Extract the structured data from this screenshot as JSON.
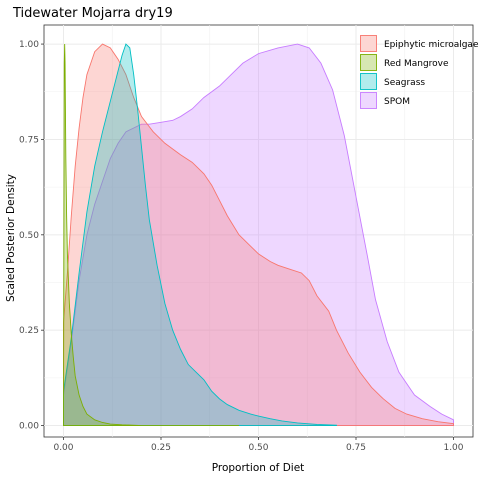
{
  "chart_data": {
    "type": "area",
    "title": "Tidewater Mojarra dry19",
    "xlabel": "Proportion of Diet",
    "ylabel": "Scaled Posterior Density",
    "xlim": [
      -0.05,
      1.05
    ],
    "ylim": [
      -0.03,
      1.05
    ],
    "x_ticks": [
      0.0,
      0.25,
      0.5,
      0.75,
      1.0
    ],
    "x_tick_labels": [
      "0.00",
      "0.25",
      "0.50",
      "0.75",
      "1.00"
    ],
    "y_ticks": [
      0.0,
      0.25,
      0.5,
      0.75,
      1.0
    ],
    "y_tick_labels": [
      "0.00",
      "0.25",
      "0.50",
      "0.75",
      "1.00"
    ],
    "grid": true,
    "legend_position": "top-right",
    "series": [
      {
        "name": "SPOM",
        "fill": "#c77cff",
        "stroke": "#c77cff",
        "points": [
          [
            0.0,
            0.08
          ],
          [
            0.02,
            0.22
          ],
          [
            0.04,
            0.38
          ],
          [
            0.06,
            0.5
          ],
          [
            0.08,
            0.58
          ],
          [
            0.1,
            0.64
          ],
          [
            0.12,
            0.7
          ],
          [
            0.14,
            0.74
          ],
          [
            0.16,
            0.77
          ],
          [
            0.18,
            0.78
          ],
          [
            0.2,
            0.79
          ],
          [
            0.22,
            0.79
          ],
          [
            0.25,
            0.795
          ],
          [
            0.28,
            0.8
          ],
          [
            0.3,
            0.81
          ],
          [
            0.33,
            0.83
          ],
          [
            0.36,
            0.86
          ],
          [
            0.4,
            0.89
          ],
          [
            0.43,
            0.92
          ],
          [
            0.46,
            0.95
          ],
          [
            0.5,
            0.975
          ],
          [
            0.55,
            0.99
          ],
          [
            0.6,
            1.0
          ],
          [
            0.63,
            0.99
          ],
          [
            0.66,
            0.95
          ],
          [
            0.69,
            0.88
          ],
          [
            0.72,
            0.76
          ],
          [
            0.75,
            0.6
          ],
          [
            0.78,
            0.44
          ],
          [
            0.8,
            0.33
          ],
          [
            0.83,
            0.22
          ],
          [
            0.86,
            0.14
          ],
          [
            0.9,
            0.08
          ],
          [
            0.94,
            0.05
          ],
          [
            0.97,
            0.03
          ],
          [
            1.0,
            0.015
          ]
        ]
      },
      {
        "name": "Epiphytic microalgae",
        "fill": "#f8766d",
        "stroke": "#f8766d",
        "points": [
          [
            0.0,
            0.27
          ],
          [
            0.01,
            0.4
          ],
          [
            0.02,
            0.55
          ],
          [
            0.03,
            0.68
          ],
          [
            0.04,
            0.78
          ],
          [
            0.05,
            0.86
          ],
          [
            0.06,
            0.92
          ],
          [
            0.08,
            0.98
          ],
          [
            0.1,
            1.0
          ],
          [
            0.12,
            0.99
          ],
          [
            0.14,
            0.96
          ],
          [
            0.16,
            0.92
          ],
          [
            0.18,
            0.86
          ],
          [
            0.2,
            0.81
          ],
          [
            0.23,
            0.77
          ],
          [
            0.26,
            0.74
          ],
          [
            0.3,
            0.71
          ],
          [
            0.33,
            0.69
          ],
          [
            0.36,
            0.66
          ],
          [
            0.38,
            0.63
          ],
          [
            0.4,
            0.59
          ],
          [
            0.42,
            0.55
          ],
          [
            0.45,
            0.5
          ],
          [
            0.48,
            0.47
          ],
          [
            0.5,
            0.45
          ],
          [
            0.53,
            0.43
          ],
          [
            0.55,
            0.42
          ],
          [
            0.58,
            0.41
          ],
          [
            0.61,
            0.4
          ],
          [
            0.63,
            0.38
          ],
          [
            0.65,
            0.34
          ],
          [
            0.68,
            0.3
          ],
          [
            0.7,
            0.25
          ],
          [
            0.73,
            0.19
          ],
          [
            0.76,
            0.14
          ],
          [
            0.79,
            0.1
          ],
          [
            0.82,
            0.07
          ],
          [
            0.85,
            0.045
          ],
          [
            0.88,
            0.03
          ],
          [
            0.92,
            0.018
          ],
          [
            0.96,
            0.01
          ],
          [
            1.0,
            0.005
          ]
        ]
      },
      {
        "name": "Seagrass",
        "fill": "#00bfc4",
        "stroke": "#00bfc4",
        "points": [
          [
            0.0,
            0.09
          ],
          [
            0.02,
            0.23
          ],
          [
            0.04,
            0.4
          ],
          [
            0.06,
            0.56
          ],
          [
            0.08,
            0.68
          ],
          [
            0.1,
            0.77
          ],
          [
            0.12,
            0.85
          ],
          [
            0.14,
            0.93
          ],
          [
            0.15,
            0.97
          ],
          [
            0.16,
            1.0
          ],
          [
            0.17,
            0.99
          ],
          [
            0.18,
            0.92
          ],
          [
            0.19,
            0.83
          ],
          [
            0.2,
            0.73
          ],
          [
            0.21,
            0.63
          ],
          [
            0.22,
            0.54
          ],
          [
            0.24,
            0.42
          ],
          [
            0.26,
            0.32
          ],
          [
            0.28,
            0.25
          ],
          [
            0.3,
            0.2
          ],
          [
            0.32,
            0.16
          ],
          [
            0.34,
            0.14
          ],
          [
            0.36,
            0.12
          ],
          [
            0.38,
            0.09
          ],
          [
            0.4,
            0.07
          ],
          [
            0.42,
            0.055
          ],
          [
            0.45,
            0.04
          ],
          [
            0.48,
            0.03
          ],
          [
            0.5,
            0.025
          ],
          [
            0.53,
            0.018
          ],
          [
            0.56,
            0.012
          ],
          [
            0.6,
            0.007
          ],
          [
            0.65,
            0.003
          ],
          [
            0.7,
            0.001
          ]
        ]
      },
      {
        "name": "Red Mangrove",
        "fill": "#7cae00",
        "stroke": "#7cae00",
        "points": [
          [
            0.0,
            0.0
          ],
          [
            0.001,
            0.5
          ],
          [
            0.002,
            0.95
          ],
          [
            0.003,
            1.0
          ],
          [
            0.004,
            0.95
          ],
          [
            0.005,
            0.82
          ],
          [
            0.006,
            0.7
          ],
          [
            0.008,
            0.55
          ],
          [
            0.01,
            0.45
          ],
          [
            0.015,
            0.32
          ],
          [
            0.02,
            0.24
          ],
          [
            0.025,
            0.18
          ],
          [
            0.03,
            0.13
          ],
          [
            0.04,
            0.08
          ],
          [
            0.05,
            0.05
          ],
          [
            0.06,
            0.03
          ],
          [
            0.08,
            0.015
          ],
          [
            0.1,
            0.008
          ],
          [
            0.12,
            0.004
          ],
          [
            0.15,
            0.002
          ],
          [
            0.2,
            0.0
          ],
          [
            0.3,
            0.0
          ],
          [
            0.45,
            0.0
          ]
        ]
      }
    ],
    "legend_order": [
      "Epiphytic microalgae",
      "Red Mangrove",
      "Seagrass",
      "SPOM"
    ]
  }
}
